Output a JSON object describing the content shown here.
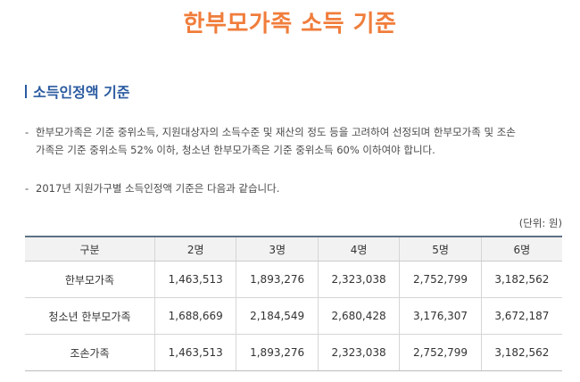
{
  "header": {
    "title": "한부모가족 소득 기준"
  },
  "section": {
    "heading": "소득인정액 기준"
  },
  "paragraphs": {
    "p1_line1": "한부모가족은 기준 중위소득, 지원대상자의 소득수준 및 재산의 정도 등을 고려하여 선정되며 한부모가족 및 조손",
    "p1_line2": "가족은 기준 중위소득 52% 이하, 청소년 한부모가족은 기준 중위소득 60% 이하여야 합니다.",
    "p2": "2017년 지원가구별 소득인정액 기준은 다음과 같습니다.",
    "dash": "-"
  },
  "table": {
    "unit": "(단위: 원)",
    "headers": [
      "구분",
      "2명",
      "3명",
      "4명",
      "5명",
      "6명"
    ],
    "rows": [
      [
        "한부모가족",
        "1,463,513",
        "1,893,276",
        "2,323,038",
        "2,752,799",
        "3,182,562"
      ],
      [
        "청소년 한부모가족",
        "1,688,669",
        "2,184,549",
        "2,680,428",
        "3,176,307",
        "3,672,187"
      ],
      [
        "조손가족",
        "1,463,513",
        "1,893,276",
        "2,323,038",
        "2,752,799",
        "3,182,562"
      ]
    ]
  },
  "colors": {
    "title": "#f07d3b",
    "heading": "#2a5aa0",
    "table_top_border": "#5d7086"
  }
}
